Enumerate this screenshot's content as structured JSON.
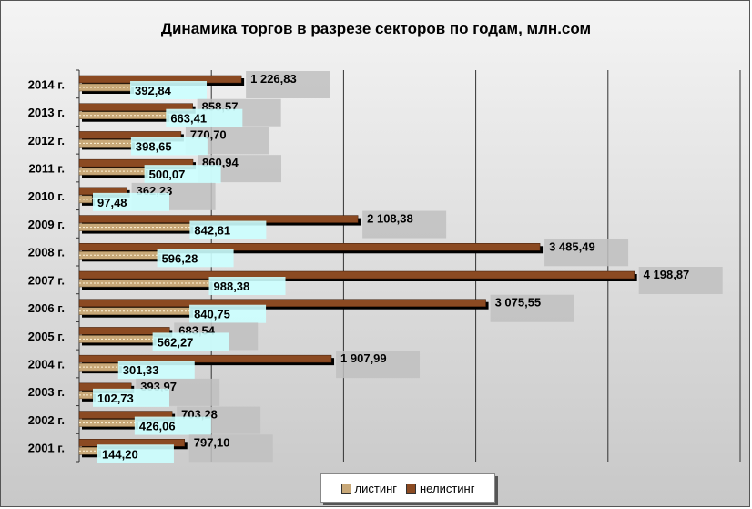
{
  "chart_data": {
    "type": "bar",
    "orientation": "horizontal",
    "title": "Динамика торгов в разрезе секторов по годам, млн.сом",
    "categories": [
      "2014 г.",
      "2013 г.",
      "2012 г.",
      "2011 г.",
      "2010 г.",
      "2009 г.",
      "2008 г.",
      "2007 г.",
      "2006 г.",
      "2005 г.",
      "2004 г.",
      "2003 г.",
      "2002 г.",
      "2001 г."
    ],
    "series": [
      {
        "name": "листинг",
        "values": [
          392.84,
          663.41,
          398.65,
          500.07,
          97.48,
          842.81,
          596.28,
          988.38,
          840.75,
          562.27,
          301.33,
          102.73,
          426.06,
          144.2
        ],
        "labels": [
          "392,84",
          "663,41",
          "398,65",
          "500,07",
          "97,48",
          "842,81",
          "596,28",
          "988,38",
          "840,75",
          "562,27",
          "301,33",
          "102,73",
          "426,06",
          "144,20"
        ],
        "color": "#c8a878"
      },
      {
        "name": "нелистинг",
        "values": [
          1226.83,
          858.57,
          770.7,
          860.94,
          362.23,
          2108.38,
          3485.49,
          4198.87,
          3075.55,
          683.54,
          1907.99,
          393.97,
          703.28,
          797.1
        ],
        "labels": [
          "1 226,83",
          "858,57",
          "770,70",
          "860,94",
          "362,23",
          "2 108,38",
          "3 485,49",
          "4 198,87",
          "3 075,55",
          "683,54",
          "1 907,99",
          "393,97",
          "703,28",
          "797,10"
        ],
        "color": "#8b4a22"
      }
    ],
    "xlim": [
      0,
      5000
    ],
    "grid": true,
    "legend_position": "bottom"
  },
  "legend": {
    "listing": "листинг",
    "nonlisting": "нелистинг"
  }
}
